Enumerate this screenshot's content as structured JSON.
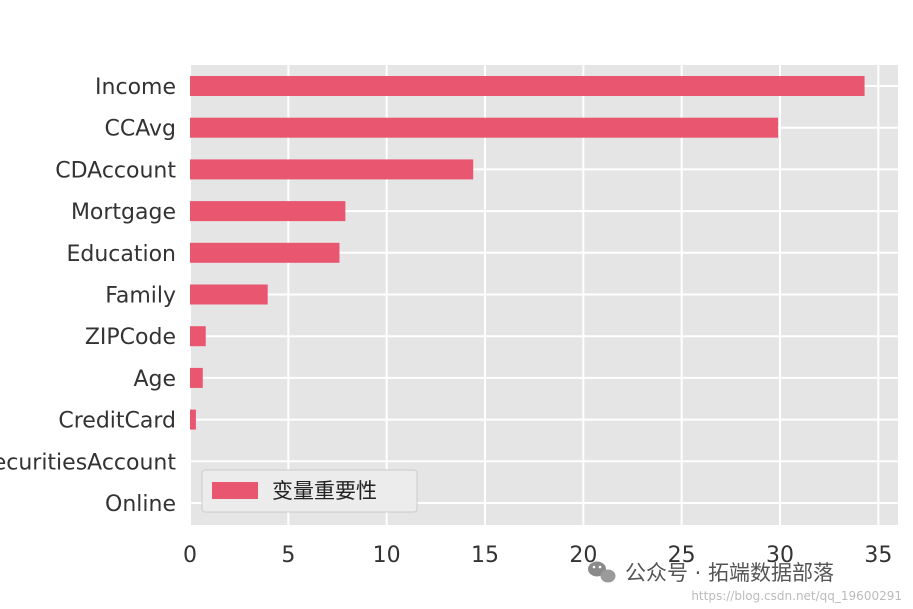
{
  "chart_data": {
    "type": "bar",
    "orientation": "horizontal",
    "categories": [
      "Income",
      "CCAvg",
      "CDAccount",
      "Mortgage",
      "Education",
      "Family",
      "ZIPCode",
      "Age",
      "CreditCard",
      "SecuritiesAccount",
      "Online"
    ],
    "series": [
      {
        "name": "变量重要性",
        "color": "#e8566f",
        "values": [
          34.3,
          29.9,
          14.4,
          7.9,
          7.6,
          3.95,
          0.8,
          0.65,
          0.3,
          0.0,
          0.0
        ]
      }
    ],
    "xticks": [
      0,
      5,
      10,
      15,
      20,
      25,
      30,
      35
    ],
    "xlim": [
      0,
      36
    ],
    "grid": true,
    "background": "#e5e5e5",
    "legend_position": "lower-left"
  },
  "watermark": {
    "text": "公众号 · 拓端数据部落",
    "url": "https://blog.csdn.net/qq_19600291"
  }
}
